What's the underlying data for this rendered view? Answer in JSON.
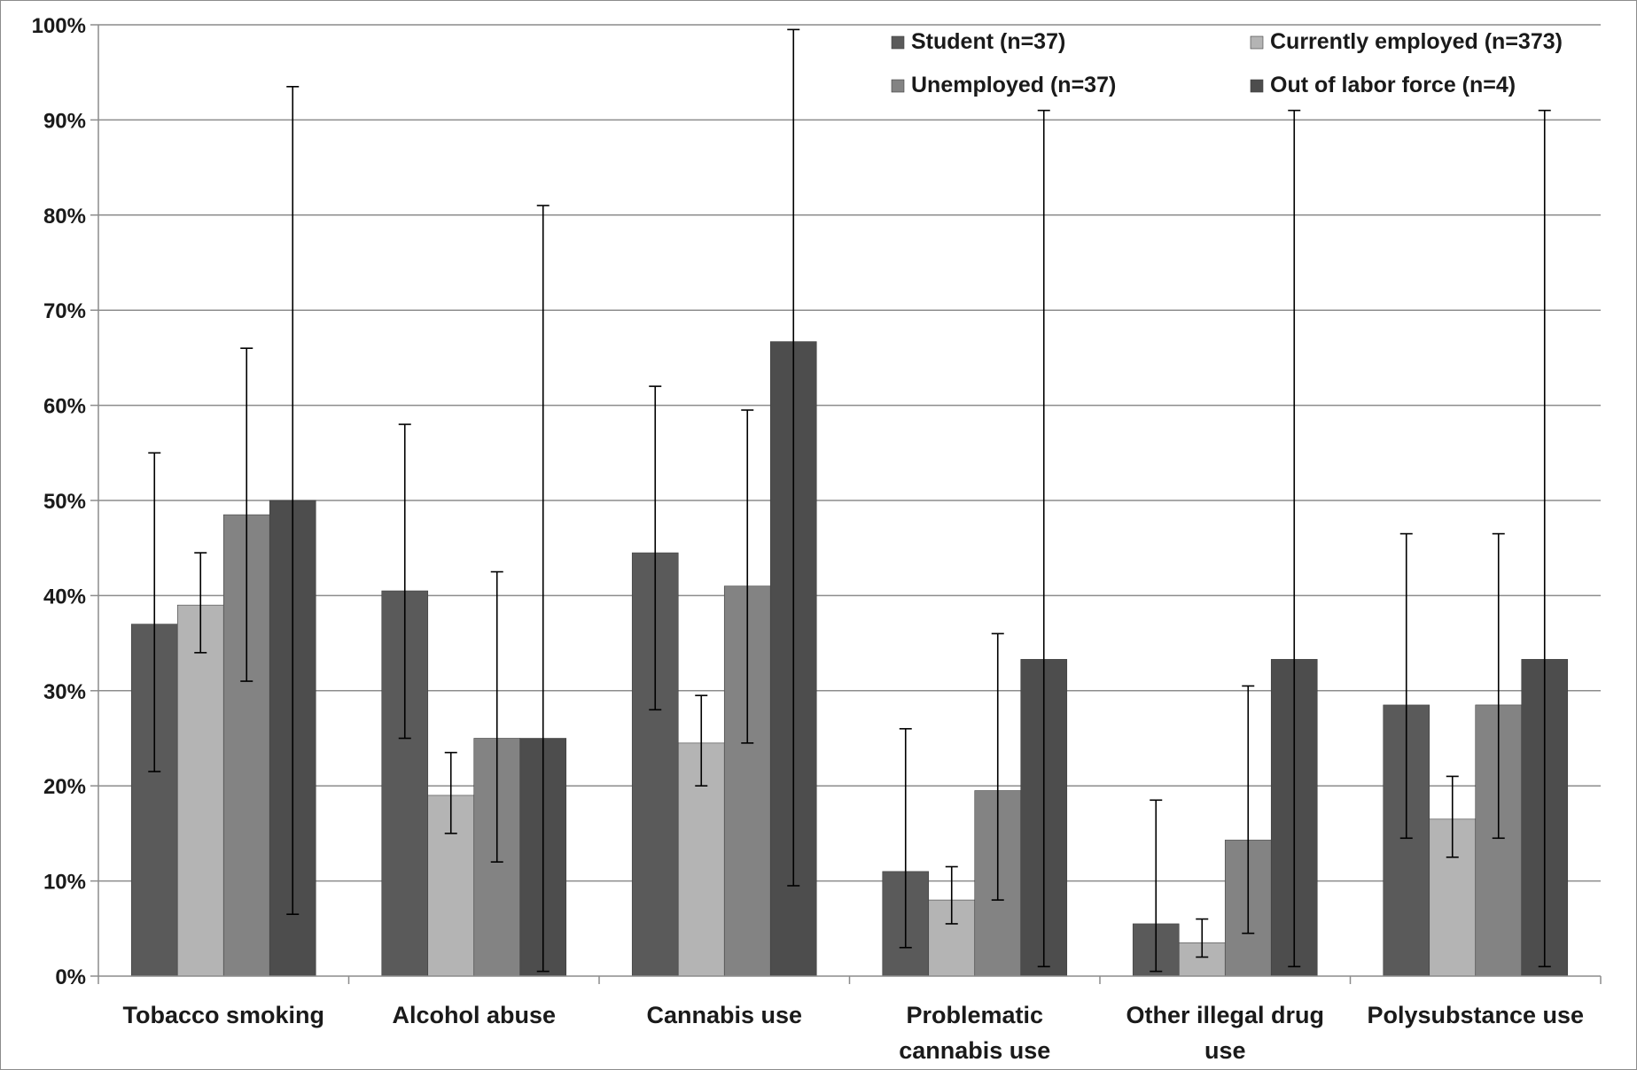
{
  "chart_data": {
    "type": "bar",
    "categories": [
      [
        "Tobacco smoking"
      ],
      [
        "Alcohol abuse"
      ],
      [
        "Cannabis use"
      ],
      [
        "Problematic",
        "cannabis use"
      ],
      [
        "Other illegal drug",
        "use"
      ],
      [
        "Polysubstance use"
      ]
    ],
    "series": [
      {
        "name": "Student (n=37)",
        "color": "#5a5a5a",
        "values": [
          37,
          40.5,
          44.5,
          11,
          5.5,
          28.5
        ],
        "err_low": [
          21.5,
          25,
          28,
          3,
          0.5,
          14.5
        ],
        "err_high": [
          55,
          58,
          62,
          26,
          18.5,
          46.5
        ]
      },
      {
        "name": "Currently employed (n=373)",
        "color": "#b4b4b4",
        "values": [
          39,
          19,
          24.5,
          8,
          3.5,
          16.5
        ],
        "err_low": [
          34,
          15,
          20,
          5.5,
          2,
          12.5
        ],
        "err_high": [
          44.5,
          23.5,
          29.5,
          11.5,
          6,
          21
        ]
      },
      {
        "name": "Unemployed (n=37)",
        "color": "#838383",
        "values": [
          48.5,
          25,
          41,
          19.5,
          14.3,
          28.5
        ],
        "err_low": [
          31,
          12,
          24.5,
          8,
          4.5,
          14.5
        ],
        "err_high": [
          66,
          42.5,
          59.5,
          36,
          30.5,
          46.5
        ]
      },
      {
        "name": "Out of labor force (n=4)",
        "color": "#4d4d4d",
        "values": [
          50,
          25,
          66.7,
          33.3,
          33.3,
          33.3
        ],
        "err_low": [
          6.5,
          0.5,
          9.5,
          1,
          1,
          1
        ],
        "err_high": [
          93.5,
          81,
          99.5,
          91,
          91,
          91
        ]
      }
    ],
    "ylim": [
      0,
      100
    ],
    "yticks": [
      0,
      10,
      20,
      30,
      40,
      50,
      60,
      70,
      80,
      90,
      100
    ],
    "ytick_suffix": "%",
    "grid": true,
    "legend": "top-right",
    "title": "",
    "xlabel": "",
    "ylabel": ""
  }
}
